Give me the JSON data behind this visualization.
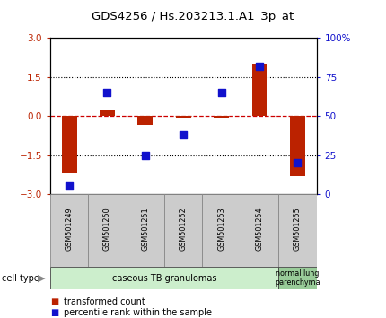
{
  "title": "GDS4256 / Hs.203213.1.A1_3p_at",
  "samples": [
    "GSM501249",
    "GSM501250",
    "GSM501251",
    "GSM501252",
    "GSM501253",
    "GSM501254",
    "GSM501255"
  ],
  "red_values": [
    -2.2,
    0.2,
    -0.35,
    -0.07,
    -0.05,
    2.0,
    -2.3
  ],
  "blue_values": [
    5,
    65,
    25,
    38,
    65,
    82,
    20
  ],
  "ylim_left": [
    -3,
    3
  ],
  "ylim_right": [
    0,
    100
  ],
  "yticks_left": [
    -3,
    -1.5,
    0,
    1.5,
    3
  ],
  "yticks_right": [
    0,
    25,
    50,
    75,
    100
  ],
  "ytick_labels_right": [
    "0",
    "25",
    "50",
    "75",
    "100%"
  ],
  "hlines": [
    1.5,
    -1.5
  ],
  "red_color": "#bb2200",
  "blue_color": "#1111cc",
  "dashed_line_color": "#cc0000",
  "group1_label": "caseous TB granulomas",
  "group2_label": "normal lung\nparenchyma",
  "group1_color": "#cceecc",
  "group2_color": "#99cc99",
  "group1_samples": 6,
  "group2_samples": 1,
  "legend_red": "transformed count",
  "legend_blue": "percentile rank within the sample",
  "cell_type_label": "cell type",
  "bar_width": 0.4,
  "blue_marker_size": 6,
  "sample_box_color": "#cccccc",
  "sample_box_edge": "#888888"
}
